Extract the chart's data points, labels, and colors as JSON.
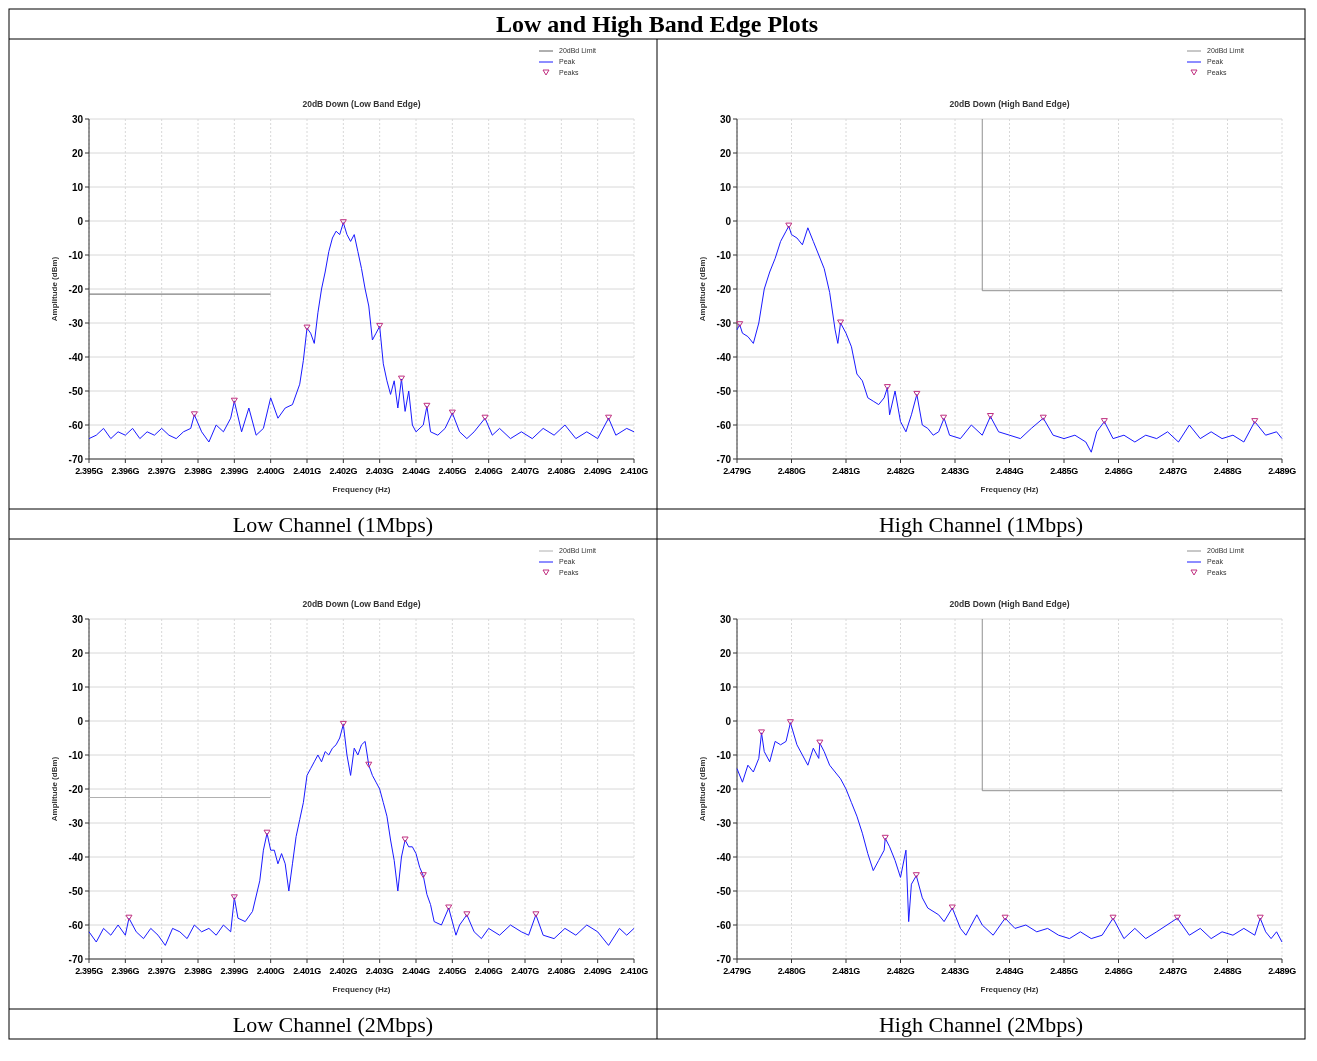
{
  "chart_data": [
    {
      "type": "line",
      "title": "20dB Down (Low Band Edge)",
      "xlabel": "Frequency (Hz)",
      "ylabel": "Amplitude (dBm)",
      "annotations": [
        "Low and High Band Edge Plots",
        "Low Channel (1Mbps)"
      ],
      "xlim": [
        2.395,
        2.41
      ],
      "ylim": [
        -70,
        30
      ],
      "xticks": [
        {
          "value": 2.395,
          "label": "2.395G"
        },
        {
          "value": 2.396,
          "label": "2.396G"
        },
        {
          "value": 2.397,
          "label": "2.397G"
        },
        {
          "value": 2.398,
          "label": "2.398G"
        },
        {
          "value": 2.399,
          "label": "2.399G"
        },
        {
          "value": 2.4,
          "label": "2.400G"
        },
        {
          "value": 2.401,
          "label": "2.401G"
        },
        {
          "value": 2.402,
          "label": "2.402G"
        },
        {
          "value": 2.403,
          "label": "2.403G"
        },
        {
          "value": 2.404,
          "label": "2.404G"
        },
        {
          "value": 2.405,
          "label": "2.405G"
        },
        {
          "value": 2.406,
          "label": "2.406G"
        },
        {
          "value": 2.407,
          "label": "2.407G"
        },
        {
          "value": 2.408,
          "label": "2.408G"
        },
        {
          "value": 2.409,
          "label": "2.409G"
        },
        {
          "value": 2.41,
          "label": "2.410G"
        }
      ],
      "yticks": [
        30,
        20,
        10,
        0,
        -10,
        -20,
        -30,
        -40,
        -50,
        -60,
        -70
      ],
      "grid": true,
      "legend": "top right",
      "series": [
        {
          "name": "20dBd Limit",
          "type": "line",
          "color": "#606060",
          "x": [
            2.395,
            2.4
          ],
          "values": [
            -21.5,
            -21.5
          ]
        },
        {
          "name": "Peak",
          "type": "line",
          "color": "#1a1aff",
          "x": [
            2.395,
            2.3952,
            2.3954,
            2.3956,
            2.3958,
            2.396,
            2.3962,
            2.3964,
            2.3966,
            2.3968,
            2.397,
            2.3972,
            2.3974,
            2.3976,
            2.3978,
            2.3979,
            2.3981,
            2.3983,
            2.3985,
            2.3987,
            2.3989,
            2.399,
            2.3992,
            2.3994,
            2.3996,
            2.3998,
            2.4,
            2.4002,
            2.4004,
            2.4006,
            2.4008,
            2.4009,
            2.401,
            2.4011,
            2.4012,
            2.4013,
            2.4014,
            2.4015,
            2.4016,
            2.4017,
            2.4018,
            2.4019,
            2.402,
            2.4021,
            2.4022,
            2.4023,
            2.4024,
            2.4025,
            2.4026,
            2.4027,
            2.4028,
            2.4029,
            2.403,
            2.4031,
            2.4032,
            2.4033,
            2.4034,
            2.4035,
            2.4036,
            2.4037,
            2.4038,
            2.4039,
            2.404,
            2.4042,
            2.4043,
            2.4044,
            2.4046,
            2.4048,
            2.405,
            2.4052,
            2.4054,
            2.4056,
            2.4059,
            2.4061,
            2.4063,
            2.4066,
            2.4069,
            2.4072,
            2.4075,
            2.4078,
            2.4081,
            2.4084,
            2.4087,
            2.409,
            2.4093,
            2.4095,
            2.4098,
            2.41
          ],
          "values": [
            -64,
            -63,
            -61,
            -64,
            -62,
            -63,
            -61,
            -64,
            -62,
            -63,
            -61,
            -63,
            -64,
            -62,
            -61,
            -57,
            -62,
            -65,
            -60,
            -62,
            -58,
            -53,
            -62,
            -55,
            -63,
            -61,
            -52,
            -58,
            -55,
            -54,
            -48,
            -41,
            -31.5,
            -33,
            -36,
            -27,
            -20,
            -15,
            -9,
            -5,
            -3,
            -4,
            -0.5,
            -4,
            -6,
            -4,
            -9,
            -14,
            -20,
            -25,
            -35,
            -33,
            -31,
            -42,
            -47,
            -51,
            -47,
            -55,
            -46.5,
            -56,
            -50,
            -60,
            -62,
            -60,
            -54.5,
            -62,
            -63,
            -61,
            -56.5,
            -62,
            -64,
            -62,
            -58,
            -63,
            -61,
            -64,
            -62,
            -64,
            -61,
            -63,
            -60,
            -64,
            -62,
            -64,
            -58,
            -63,
            -61,
            -62
          ]
        },
        {
          "name": "Peaks",
          "type": "scatter",
          "color": "#c03080",
          "marker": "triangle",
          "x": [
            2.3979,
            2.399,
            2.401,
            2.402,
            2.403,
            2.4036,
            2.4043,
            2.405,
            2.4059,
            2.4093
          ],
          "values": [
            -57,
            -53,
            -31.5,
            -0.5,
            -31,
            -46.5,
            -54.5,
            -56.5,
            -58,
            -58
          ]
        }
      ]
    },
    {
      "type": "line",
      "title": "20dB Down (High Band Edge)",
      "xlabel": "Frequency (Hz)",
      "ylabel": "Amplitude (dBm)",
      "annotations": [
        "High Channel (1Mbps)"
      ],
      "xlim": [
        2.479,
        2.489
      ],
      "ylim": [
        -70,
        30
      ],
      "xticks": [
        {
          "value": 2.479,
          "label": "2.479G"
        },
        {
          "value": 2.48,
          "label": "2.480G"
        },
        {
          "value": 2.481,
          "label": "2.481G"
        },
        {
          "value": 2.482,
          "label": "2.482G"
        },
        {
          "value": 2.483,
          "label": "2.483G"
        },
        {
          "value": 2.484,
          "label": "2.484G"
        },
        {
          "value": 2.485,
          "label": "2.485G"
        },
        {
          "value": 2.486,
          "label": "2.486G"
        },
        {
          "value": 2.487,
          "label": "2.487G"
        },
        {
          "value": 2.488,
          "label": "2.488G"
        },
        {
          "value": 2.489,
          "label": "2.489G"
        }
      ],
      "yticks": [
        30,
        20,
        10,
        0,
        -10,
        -20,
        -30,
        -40,
        -50,
        -60,
        -70
      ],
      "grid": true,
      "legend": "top right",
      "series": [
        {
          "name": "20dBd Limit",
          "type": "line",
          "color": "#909090",
          "x": [
            2.4835,
            2.4835,
            2.489
          ],
          "values": [
            30,
            -20.5,
            -20.5
          ]
        },
        {
          "name": "Peak",
          "type": "line",
          "color": "#1a1aff",
          "x": [
            2.479,
            2.47905,
            2.4791,
            2.4792,
            2.4793,
            2.4794,
            2.4795,
            2.4796,
            2.4797,
            2.4798,
            2.4799,
            2.47995,
            2.48,
            2.4801,
            2.4802,
            2.4803,
            2.4804,
            2.4805,
            2.4806,
            2.4807,
            2.4808,
            2.48085,
            2.4809,
            2.481,
            2.4811,
            2.4812,
            2.4813,
            2.4814,
            2.4815,
            2.4816,
            2.4817,
            2.48176,
            2.4818,
            2.4819,
            2.482,
            2.4821,
            2.4822,
            2.4823,
            2.4824,
            2.4825,
            2.4826,
            2.4827,
            2.4828,
            2.4829,
            2.4831,
            2.4833,
            2.4835,
            2.48365,
            2.4838,
            2.484,
            2.4842,
            2.4844,
            2.48462,
            2.4848,
            2.485,
            2.4852,
            2.4854,
            2.4855,
            2.4856,
            2.48574,
            2.4859,
            2.4861,
            2.4863,
            2.4865,
            2.4867,
            2.4869,
            2.4871,
            2.4873,
            2.4875,
            2.4877,
            2.4879,
            2.4881,
            2.4883,
            2.4885,
            2.4887,
            2.4889,
            2.489
          ],
          "values": [
            -32,
            -30.5,
            -33,
            -34,
            -36,
            -30,
            -20,
            -15,
            -11,
            -6,
            -3,
            -1.5,
            -4,
            -5,
            -7,
            -2,
            -6,
            -10,
            -14,
            -21,
            -32,
            -36,
            -30,
            -33,
            -37,
            -45,
            -47,
            -52,
            -53,
            -54,
            -52,
            -49,
            -57,
            -50,
            -59,
            -62,
            -57,
            -51,
            -60,
            -61,
            -63,
            -62,
            -58,
            -63,
            -64,
            -60,
            -63,
            -57.5,
            -62,
            -63,
            -64,
            -61,
            -58,
            -63,
            -64,
            -63,
            -65,
            -68,
            -62,
            -59,
            -64,
            -63,
            -65,
            -63,
            -64,
            -62,
            -65,
            -60,
            -64,
            -62,
            -64,
            -63,
            -65,
            -59,
            -63,
            -62,
            -64
          ]
        },
        {
          "name": "Peaks",
          "type": "scatter",
          "color": "#c03080",
          "marker": "triangle",
          "x": [
            2.47905,
            2.47995,
            2.4809,
            2.48176,
            2.4823,
            2.48279,
            2.48365,
            2.48462,
            2.48574,
            2.4885
          ],
          "values": [
            -30.5,
            -1.5,
            -30,
            -49,
            -51,
            -58,
            -57.5,
            -58,
            -59,
            -59
          ]
        }
      ]
    },
    {
      "type": "line",
      "title": "20dB Down (Low Band Edge)",
      "xlabel": "Frequency (Hz)",
      "ylabel": "Amplitude (dBm)",
      "annotations": [
        "Low Channel (2Mbps)"
      ],
      "xlim": [
        2.395,
        2.41
      ],
      "ylim": [
        -70,
        30
      ],
      "xticks": [
        {
          "value": 2.395,
          "label": "2.395G"
        },
        {
          "value": 2.396,
          "label": "2.396G"
        },
        {
          "value": 2.397,
          "label": "2.397G"
        },
        {
          "value": 2.398,
          "label": "2.398G"
        },
        {
          "value": 2.399,
          "label": "2.399G"
        },
        {
          "value": 2.4,
          "label": "2.400G"
        },
        {
          "value": 2.401,
          "label": "2.401G"
        },
        {
          "value": 2.402,
          "label": "2.402G"
        },
        {
          "value": 2.403,
          "label": "2.403G"
        },
        {
          "value": 2.404,
          "label": "2.404G"
        },
        {
          "value": 2.405,
          "label": "2.405G"
        },
        {
          "value": 2.406,
          "label": "2.406G"
        },
        {
          "value": 2.407,
          "label": "2.407G"
        },
        {
          "value": 2.408,
          "label": "2.408G"
        },
        {
          "value": 2.409,
          "label": "2.409G"
        },
        {
          "value": 2.41,
          "label": "2.410G"
        }
      ],
      "yticks": [
        30,
        20,
        10,
        0,
        -10,
        -20,
        -30,
        -40,
        -50,
        -60,
        -70
      ],
      "grid": true,
      "legend": "top right",
      "series": [
        {
          "name": "20dBd Limit",
          "type": "line",
          "color": "#b0b0b0",
          "x": [
            2.395,
            2.4
          ],
          "values": [
            -22.5,
            -22.5
          ]
        },
        {
          "name": "Peak",
          "type": "line",
          "color": "#1a1aff",
          "x": [
            2.395,
            2.3952,
            2.3954,
            2.3956,
            2.3958,
            2.396,
            2.3961,
            2.3963,
            2.3965,
            2.3967,
            2.3969,
            2.3971,
            2.3973,
            2.3975,
            2.3977,
            2.3979,
            2.3981,
            2.3983,
            2.3985,
            2.3987,
            2.3989,
            2.399,
            2.3991,
            2.3993,
            2.3995,
            2.3997,
            2.3998,
            2.3999,
            2.4,
            2.4001,
            2.4002,
            2.4003,
            2.4004,
            2.4005,
            2.4006,
            2.4007,
            2.4008,
            2.4009,
            2.401,
            2.4011,
            2.4012,
            2.4013,
            2.4014,
            2.4015,
            2.4016,
            2.4017,
            2.4018,
            2.4019,
            2.402,
            2.4021,
            2.4022,
            2.4023,
            2.4024,
            2.4025,
            2.4026,
            2.4027,
            2.4028,
            2.4029,
            2.403,
            2.4031,
            2.4032,
            2.4033,
            2.4034,
            2.4035,
            2.4036,
            2.4037,
            2.4038,
            2.4039,
            2.404,
            2.4041,
            2.4042,
            2.4043,
            2.4044,
            2.4045,
            2.4047,
            2.4049,
            2.4051,
            2.4052,
            2.4054,
            2.4056,
            2.4058,
            2.406,
            2.4063,
            2.4066,
            2.4069,
            2.4071,
            2.4073,
            2.4075,
            2.4078,
            2.4081,
            2.4084,
            2.4087,
            2.409,
            2.4093,
            2.4096,
            2.4098,
            2.41
          ],
          "values": [
            -62,
            -65,
            -61,
            -63,
            -60,
            -63,
            -58,
            -62,
            -64,
            -61,
            -63,
            -66,
            -61,
            -62,
            -64,
            -60,
            -62,
            -61,
            -63,
            -60,
            -62,
            -52,
            -58,
            -59,
            -56,
            -47,
            -38,
            -33,
            -38,
            -38,
            -42,
            -39,
            -42,
            -50,
            -42,
            -34,
            -29,
            -24,
            -16,
            -14,
            -12,
            -10,
            -12,
            -9,
            -10,
            -8,
            -7,
            -5,
            -1,
            -10,
            -16,
            -8,
            -10,
            -7,
            -6,
            -13,
            -16,
            -18,
            -20,
            -24,
            -28,
            -35,
            -41,
            -50,
            -40,
            -35,
            -37,
            -37,
            -39,
            -43,
            -45.5,
            -51,
            -54,
            -59,
            -60,
            -55,
            -63,
            -60,
            -57,
            -62,
            -64,
            -61,
            -63,
            -60,
            -62,
            -63,
            -57,
            -63,
            -64,
            -61,
            -63,
            -60,
            -62,
            -66,
            -61,
            -63,
            -61
          ]
        },
        {
          "name": "Peaks",
          "type": "scatter",
          "color": "#c03080",
          "marker": "triangle",
          "x": [
            2.3961,
            2.399,
            2.3999,
            2.402,
            2.4027,
            2.4037,
            2.4042,
            2.4049,
            2.4054,
            2.4073
          ],
          "values": [
            -58,
            -52,
            -33,
            -1,
            -13,
            -35,
            -45.5,
            -55,
            -57,
            -57
          ]
        }
      ]
    },
    {
      "type": "line",
      "title": "20dB Down (High Band Edge)",
      "xlabel": "Frequency (Hz)",
      "ylabel": "Amplitude (dBm)",
      "annotations": [
        "High Channel (2Mbps)"
      ],
      "xlim": [
        2.479,
        2.489
      ],
      "ylim": [
        -70,
        30
      ],
      "xticks": [
        {
          "value": 2.479,
          "label": "2.479G"
        },
        {
          "value": 2.48,
          "label": "2.480G"
        },
        {
          "value": 2.481,
          "label": "2.481G"
        },
        {
          "value": 2.482,
          "label": "2.482G"
        },
        {
          "value": 2.483,
          "label": "2.483G"
        },
        {
          "value": 2.484,
          "label": "2.484G"
        },
        {
          "value": 2.485,
          "label": "2.485G"
        },
        {
          "value": 2.486,
          "label": "2.486G"
        },
        {
          "value": 2.487,
          "label": "2.487G"
        },
        {
          "value": 2.488,
          "label": "2.488G"
        },
        {
          "value": 2.489,
          "label": "2.489G"
        }
      ],
      "yticks": [
        30,
        20,
        10,
        0,
        -10,
        -20,
        -30,
        -40,
        -50,
        -60,
        -70
      ],
      "grid": true,
      "legend": "top right",
      "series": [
        {
          "name": "20dBd Limit",
          "type": "line",
          "color": "#909090",
          "x": [
            2.4835,
            2.4835,
            2.489
          ],
          "values": [
            30,
            -20.5,
            -20.5
          ]
        },
        {
          "name": "Peak",
          "type": "line",
          "color": "#1a1aff",
          "x": [
            2.479,
            2.4791,
            2.4792,
            2.4793,
            2.4794,
            2.47945,
            2.4795,
            2.4796,
            2.4797,
            2.4798,
            2.4799,
            2.47998,
            2.4801,
            2.4802,
            2.4803,
            2.4804,
            2.4805,
            2.48052,
            2.4806,
            2.4807,
            2.4808,
            2.4809,
            2.481,
            2.4811,
            2.4812,
            2.4813,
            2.4814,
            2.4815,
            2.4816,
            2.4817,
            2.48172,
            2.4818,
            2.4819,
            2.482,
            2.4821,
            2.48215,
            2.4822,
            2.48229,
            2.4824,
            2.4825,
            2.4827,
            2.4828,
            2.48295,
            2.4831,
            2.4832,
            2.4834,
            2.4835,
            2.4837,
            2.48392,
            2.4841,
            2.4843,
            2.4845,
            2.4847,
            2.4849,
            2.4851,
            2.4853,
            2.4855,
            2.4857,
            2.4859,
            2.4861,
            2.4863,
            2.4865,
            2.4867,
            2.48708,
            2.4873,
            2.4875,
            2.4877,
            2.4879,
            2.4881,
            2.4883,
            2.4885,
            2.4886,
            2.4887,
            2.4888,
            2.4889,
            2.489
          ],
          "values": [
            -14,
            -18,
            -13,
            -15,
            -11,
            -3.5,
            -9,
            -12,
            -6,
            -7,
            -6,
            -0.5,
            -7,
            -10,
            -13,
            -8,
            -11,
            -6.5,
            -9,
            -13,
            -15,
            -17,
            -20,
            -24,
            -28,
            -33,
            -39,
            -44,
            -41,
            -38,
            -34.5,
            -37,
            -41,
            -46,
            -38,
            -59,
            -48,
            -45.5,
            -52,
            -55,
            -57,
            -59,
            -55,
            -61,
            -63,
            -57,
            -60,
            -63,
            -58,
            -61,
            -60,
            -62,
            -61,
            -63,
            -64,
            -62,
            -64,
            -63,
            -58,
            -64,
            -61,
            -64,
            -62,
            -58,
            -63,
            -61,
            -64,
            -62,
            -63,
            -61,
            -63,
            -58,
            -62,
            -64,
            -62,
            -65
          ]
        },
        {
          "name": "Peaks",
          "type": "scatter",
          "color": "#c03080",
          "marker": "triangle",
          "x": [
            2.47945,
            2.47998,
            2.48052,
            2.48172,
            2.48229,
            2.48295,
            2.48392,
            2.4859,
            2.48708,
            2.4886
          ],
          "values": [
            -3.5,
            -0.5,
            -6.5,
            -34.5,
            -45.5,
            -55,
            -58,
            -58,
            -58,
            -58
          ]
        }
      ]
    }
  ]
}
